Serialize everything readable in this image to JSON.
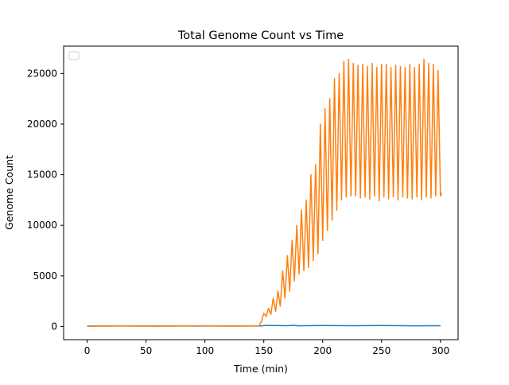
{
  "chart_data": {
    "type": "line",
    "title": "Total Genome Count vs Time",
    "xlabel": "Time (min)",
    "ylabel": "Genome Count",
    "xlim": [
      -20,
      315
    ],
    "ylim": [
      -1300,
      27700
    ],
    "xticks": [
      0,
      50,
      100,
      150,
      200,
      250,
      300
    ],
    "yticks": [
      0,
      5000,
      10000,
      15000,
      20000,
      25000
    ],
    "legend": {
      "placement": "upper-left",
      "entries": []
    },
    "grid": false,
    "series": [
      {
        "color": "#1f77b4",
        "x": [
          0,
          50,
          100,
          148,
          150,
          160,
          170,
          175,
          180,
          200,
          225,
          250,
          275,
          300
        ],
        "values": [
          50,
          50,
          50,
          50,
          90,
          100,
          80,
          110,
          70,
          90,
          80,
          100,
          70,
          80
        ]
      },
      {
        "color": "#ff7f0e",
        "x": [
          0,
          30,
          60,
          90,
          120,
          146,
          148,
          150,
          152,
          154,
          156,
          158,
          160,
          162,
          164,
          166,
          168,
          170,
          172,
          174,
          176,
          178,
          180,
          182,
          184,
          186,
          188,
          190,
          192,
          194,
          196,
          198,
          200,
          202,
          204,
          206,
          208,
          210,
          212,
          214,
          216,
          218,
          220,
          222,
          224,
          226,
          228,
          230,
          232,
          234,
          236,
          238,
          240,
          242,
          244,
          246,
          248,
          250,
          252,
          254,
          256,
          258,
          260,
          262,
          264,
          266,
          268,
          270,
          272,
          274,
          276,
          278,
          280,
          282,
          284,
          286,
          288,
          290,
          292,
          294,
          296,
          298,
          300,
          301
        ],
        "values": [
          20,
          60,
          30,
          70,
          40,
          60,
          500,
          1300,
          1000,
          1800,
          1200,
          2800,
          1500,
          3500,
          2000,
          5500,
          2800,
          7000,
          3500,
          8500,
          4500,
          10000,
          5200,
          11500,
          5500,
          12500,
          5800,
          15000,
          6500,
          16000,
          7200,
          20000,
          8500,
          21500,
          9500,
          22500,
          10500,
          24500,
          11500,
          25000,
          12500,
          26200,
          12800,
          26400,
          12900,
          26000,
          12900,
          25800,
          12700,
          25900,
          12800,
          25700,
          12600,
          26000,
          12900,
          25600,
          12400,
          25900,
          12800,
          25900,
          12600,
          25600,
          12800,
          25800,
          12500,
          25700,
          12800,
          25600,
          12700,
          25900,
          12600,
          25600,
          12800,
          25900,
          12500,
          26400,
          12800,
          26000,
          12700,
          25900,
          12900,
          25300,
          12900,
          13200
        ]
      }
    ]
  }
}
